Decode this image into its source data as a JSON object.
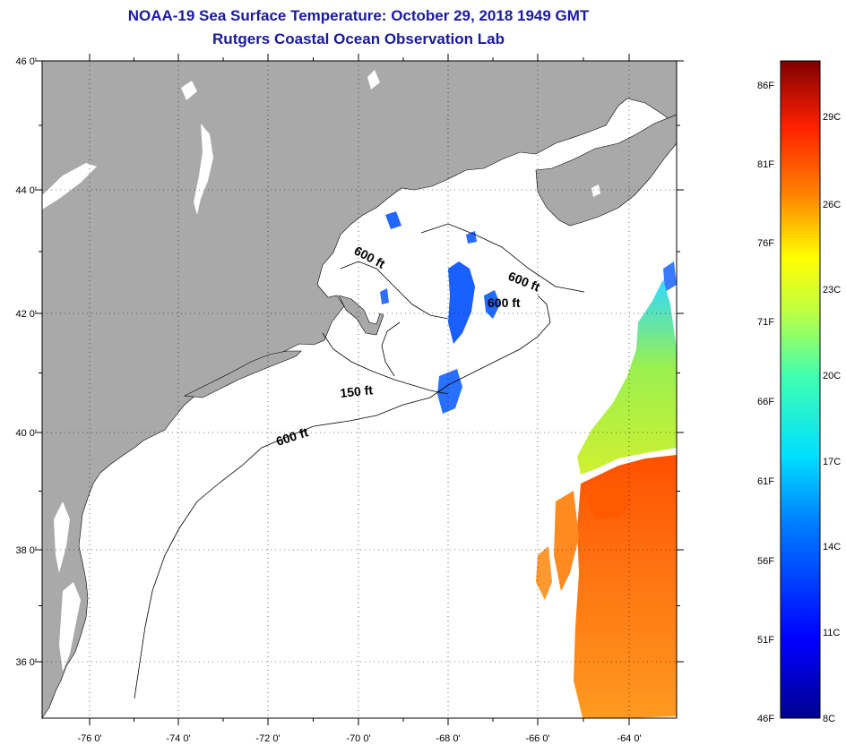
{
  "header": {
    "title": "NOAA-19 Sea Surface Temperature:  October 29, 2018 1949 GMT",
    "subtitle": "Rutgers Coastal Ocean Observation Lab"
  },
  "map": {
    "lat_labels": [
      "46 0'",
      "44 0'",
      "42 0'",
      "40 0'",
      "38 0'",
      "36 0'"
    ],
    "lon_labels": [
      "-76 0'",
      "-74 0'",
      "-72 0'",
      "-70 0'",
      "-68 0'",
      "-66 0'",
      "-64 0'"
    ],
    "depth_labels": [
      "600 ft",
      "600 ft",
      "600 ft",
      "150 ft",
      "600 ft"
    ],
    "colors": {
      "land": "#a9a9a9",
      "ocean": "#ffffff",
      "contour": "#000000"
    }
  },
  "colorbar": {
    "fahrenheit_labels": [
      "86F",
      "81F",
      "76F",
      "71F",
      "66F",
      "61F",
      "56F",
      "51F",
      "46F"
    ],
    "celsius_labels": [
      "29C",
      "26C",
      "23C",
      "20C",
      "17C",
      "14C",
      "11C",
      "8C"
    ]
  }
}
